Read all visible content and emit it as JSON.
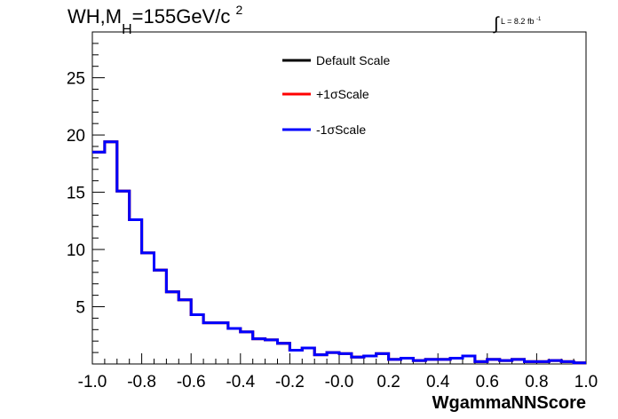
{
  "title": {
    "prefix": "WH,M",
    "subscript": "H",
    "value": "=155GeV/c",
    "superscript": "2"
  },
  "luminosity": {
    "integral_symbol": "∫",
    "text": "L = 8.2 fb",
    "superscript": "-1"
  },
  "colors": {
    "default_scale": "#000000",
    "plus_one_sigma": "#ff0000",
    "minus_one_sigma": "#0000ff"
  },
  "chart_data": {
    "type": "line",
    "style": "step-histogram",
    "xlabel": "WgammaNNScore",
    "ylabel": "",
    "xlim": [
      -1.0,
      1.0
    ],
    "ylim": [
      0,
      29
    ],
    "x_ticks": [
      "-1.0",
      "-0.8",
      "-0.6",
      "-0.4",
      "-0.2",
      "-0.0",
      "0.2",
      "0.4",
      "0.6",
      "0.8",
      "1.0"
    ],
    "y_ticks": [
      "5",
      "10",
      "15",
      "20",
      "25"
    ],
    "bin_edges": [
      -1.0,
      -0.95,
      -0.9,
      -0.85,
      -0.8,
      -0.75,
      -0.7,
      -0.65,
      -0.6,
      -0.55,
      -0.5,
      -0.45,
      -0.4,
      -0.35,
      -0.3,
      -0.25,
      -0.2,
      -0.15,
      -0.1,
      -0.05,
      0.0,
      0.05,
      0.1,
      0.15,
      0.2,
      0.25,
      0.3,
      0.35,
      0.4,
      0.45,
      0.5,
      0.55,
      0.6,
      0.65,
      0.7,
      0.75,
      0.8,
      0.85,
      0.9,
      0.95,
      1.0
    ],
    "legend_position": "top-center",
    "series": [
      {
        "name": "Default Scale",
        "values": [
          18.5,
          19.4,
          15.1,
          12.6,
          9.7,
          8.2,
          6.3,
          5.6,
          4.3,
          3.6,
          3.6,
          3.1,
          2.8,
          2.2,
          2.1,
          1.8,
          1.2,
          1.4,
          0.8,
          1.0,
          0.9,
          0.6,
          0.7,
          0.9,
          0.4,
          0.5,
          0.3,
          0.4,
          0.4,
          0.5,
          0.7,
          0.2,
          0.4,
          0.3,
          0.4,
          0.2,
          0.2,
          0.3,
          0.2,
          0.1
        ]
      },
      {
        "name": "+1σScale",
        "values": [
          18.5,
          19.4,
          15.1,
          12.6,
          9.7,
          8.2,
          6.3,
          5.6,
          4.3,
          3.6,
          3.6,
          3.1,
          2.8,
          2.2,
          2.1,
          1.8,
          1.2,
          1.4,
          0.8,
          1.0,
          0.9,
          0.6,
          0.7,
          0.9,
          0.4,
          0.5,
          0.3,
          0.4,
          0.4,
          0.5,
          0.7,
          0.2,
          0.4,
          0.3,
          0.4,
          0.2,
          0.2,
          0.3,
          0.2,
          0.1
        ]
      },
      {
        "name": "-1σScale",
        "values": [
          18.5,
          19.4,
          15.1,
          12.6,
          9.7,
          8.2,
          6.3,
          5.6,
          4.3,
          3.6,
          3.6,
          3.1,
          2.8,
          2.2,
          2.1,
          1.8,
          1.2,
          1.4,
          0.8,
          1.0,
          0.9,
          0.6,
          0.7,
          0.9,
          0.4,
          0.5,
          0.3,
          0.4,
          0.4,
          0.5,
          0.7,
          0.2,
          0.4,
          0.3,
          0.4,
          0.2,
          0.2,
          0.3,
          0.2,
          0.1
        ]
      }
    ]
  }
}
